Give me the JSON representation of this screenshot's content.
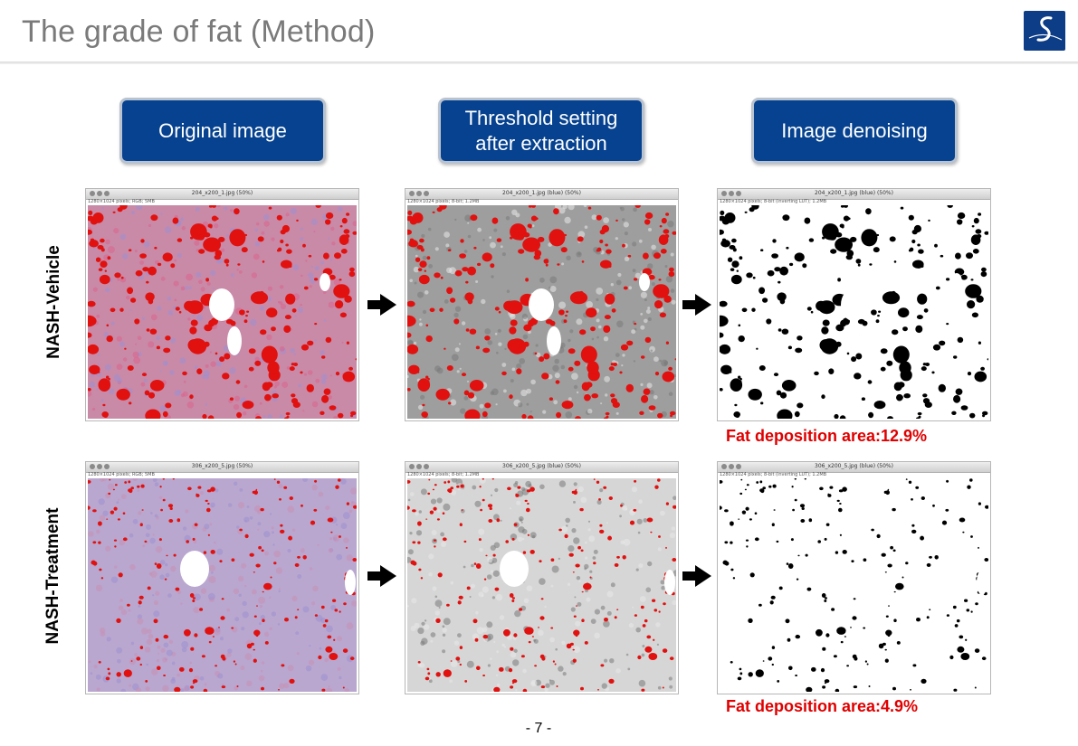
{
  "slide": {
    "title": "The grade of fat (Method)",
    "page_number": "- 7 -",
    "accent_color": "#06428f",
    "highlight_color": "#e00000"
  },
  "steps": [
    {
      "label": "Original image"
    },
    {
      "label": "Threshold setting after extraction"
    },
    {
      "label": "Image denoising"
    }
  ],
  "rows": [
    {
      "label": "NASH-Vehicle",
      "fat_label": "Fat deposition area:12.9%",
      "windows": [
        {
          "title": "204_x200_1.jpg (50%)",
          "info": "1280×1024 pixels; RGB; 5MB"
        },
        {
          "title": "204_x200_1.jpg (blue) (50%)",
          "info": "1280×1024 pixels; 8-bit; 1.2MB"
        },
        {
          "title": "204_x200_1.jpg (blue) (50%)",
          "info": "1280×1024 pixels; 8-bit (inverting LUT); 1.2MB"
        }
      ]
    },
    {
      "label": "NASH-Treatment",
      "fat_label": "Fat deposition area:4.9%",
      "windows": [
        {
          "title": "306_x200_5.jpg (50%)",
          "info": "1280×1024 pixels; RGB; 5MB"
        },
        {
          "title": "306_x200_5.jpg (blue) (50%)",
          "info": "1280×1024 pixels; 8-bit; 1.2MB"
        },
        {
          "title": "306_x200_5.jpg (blue) (50%)",
          "info": "1280×1024 pixels; 8-bit (inverting LUT); 1.2MB"
        }
      ]
    }
  ],
  "icons": {
    "logo": "company-s-logo-icon",
    "arrow": "right-arrow-icon"
  }
}
